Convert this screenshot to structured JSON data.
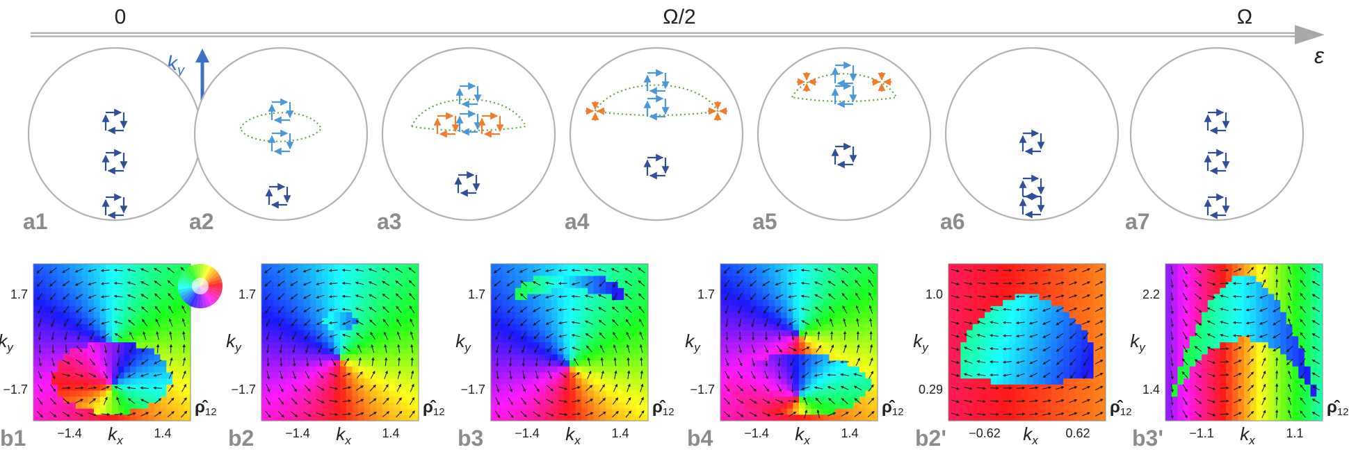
{
  "colors": {
    "circle": "#b3b3b3",
    "dark_blue": "#2f4f9b",
    "light_blue": "#4a97da",
    "orange": "#f07c2e",
    "green_dotted": "#5fa83a",
    "gray_label": "#8c8c8c",
    "axis_arrow": "#a9a9a9",
    "axis_blue": "#3b72c4"
  },
  "timeline": {
    "labels": [
      "0",
      "Ω/2",
      "Ω"
    ],
    "axis_symbol": "ε"
  },
  "axes_inset": {
    "ky": "k",
    "ky_sub": "y",
    "kx": "k",
    "kx_sub": "x"
  },
  "panels_a": [
    {
      "label": "a1"
    },
    {
      "label": "a2"
    },
    {
      "label": "a3"
    },
    {
      "label": "a4"
    },
    {
      "label": "a5"
    },
    {
      "label": "a6"
    },
    {
      "label": "a7"
    }
  ],
  "panels_b": [
    {
      "label": "b1",
      "ytick_top": "1.7",
      "ytick_bottom": "−1.7",
      "xtick_left": "−1.4",
      "xtick_right": "1.4",
      "pattern": "vortex_bottom_lobe"
    },
    {
      "label": "b2",
      "ytick_top": "1.7",
      "ytick_bottom": "−1.7",
      "xtick_left": "−1.4",
      "xtick_right": "1.4",
      "pattern": "vortex_small_island"
    },
    {
      "label": "b3",
      "ytick_top": "1.7",
      "ytick_bottom": "−1.7",
      "xtick_left": "−1.4",
      "xtick_right": "1.4",
      "pattern": "vortex_top_arc"
    },
    {
      "label": "b4",
      "ytick_top": "1.7",
      "ytick_bottom": "−1.7",
      "xtick_left": "−1.4",
      "xtick_right": "1.4",
      "pattern": "vortex_bottom_pair"
    },
    {
      "label": "b2'",
      "ytick_top": "1.0",
      "ytick_bottom": "0.29",
      "xtick_left": "−0.62",
      "xtick_right": "0.62",
      "pattern": "zoom_island"
    },
    {
      "label": "b3'",
      "ytick_top": "2.2",
      "ytick_bottom": "1.4",
      "xtick_left": "−1.1",
      "xtick_right": "1.1",
      "pattern": "zoom_arc"
    }
  ],
  "axis_labels": {
    "k": "k",
    "x": "x",
    "y": "y",
    "rho": "ρ̂",
    "rho_sub": "12"
  }
}
